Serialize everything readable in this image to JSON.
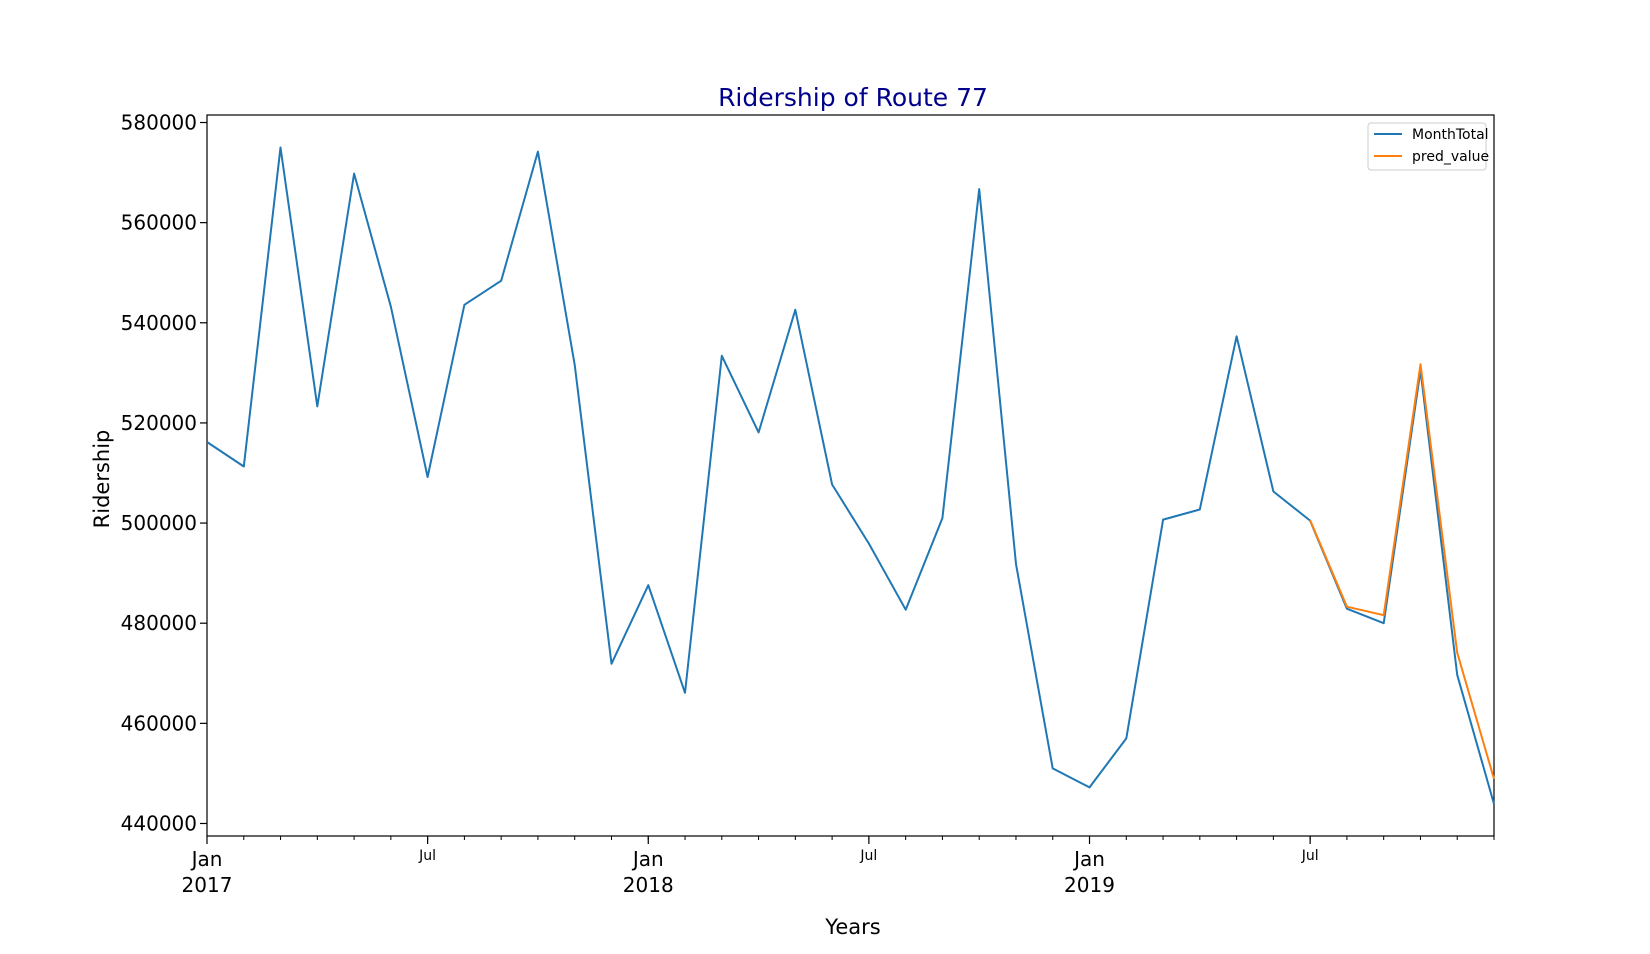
{
  "chart_data": {
    "type": "line",
    "title": "Ridership of Route 77",
    "xlabel": "Years",
    "ylabel": "Ridership",
    "ylim": [
      437500,
      581500
    ],
    "xlim": [
      "2017-01",
      "2019-12"
    ],
    "y_ticks": [
      440000,
      460000,
      480000,
      500000,
      520000,
      540000,
      560000,
      580000
    ],
    "x_major_ticks": [
      {
        "x": "2017-01",
        "label": "Jan",
        "year": "2017"
      },
      {
        "x": "2017-07",
        "label": "Jul",
        "year": ""
      },
      {
        "x": "2018-01",
        "label": "Jan",
        "year": "2018"
      },
      {
        "x": "2018-07",
        "label": "Jul",
        "year": ""
      },
      {
        "x": "2019-01",
        "label": "Jan",
        "year": "2019"
      },
      {
        "x": "2019-07",
        "label": "Jul",
        "year": ""
      }
    ],
    "legend": "top-right",
    "grid": false,
    "series": [
      {
        "name": "MonthTotal",
        "color": "#1f77b4",
        "x": [
          "2017-01",
          "2017-02",
          "2017-03",
          "2017-04",
          "2017-05",
          "2017-06",
          "2017-07",
          "2017-08",
          "2017-09",
          "2017-10",
          "2017-11",
          "2017-12",
          "2018-01",
          "2018-02",
          "2018-03",
          "2018-04",
          "2018-05",
          "2018-06",
          "2018-07",
          "2018-08",
          "2018-09",
          "2018-10",
          "2018-11",
          "2018-12",
          "2019-01",
          "2019-02",
          "2019-03",
          "2019-04",
          "2019-05",
          "2019-06",
          "2019-07",
          "2019-08",
          "2019-09",
          "2019-10",
          "2019-11",
          "2019-12"
        ],
        "values": [
          516200,
          511300,
          575000,
          523300,
          569800,
          543200,
          509200,
          543600,
          548400,
          574200,
          531600,
          471900,
          487600,
          466100,
          533400,
          518100,
          542600,
          507700,
          495900,
          482700,
          501000,
          566700,
          491800,
          451000,
          447200,
          457000,
          500700,
          502700,
          537300,
          506300,
          500500,
          482900,
          480000,
          530500,
          469700,
          443900
        ]
      },
      {
        "name": "pred_value",
        "color": "#ff7f0e",
        "x": [
          "2019-07",
          "2019-08",
          "2019-09",
          "2019-10",
          "2019-11",
          "2019-12"
        ],
        "values": [
          500600,
          483300,
          481600,
          531700,
          474100,
          448900
        ]
      }
    ]
  }
}
